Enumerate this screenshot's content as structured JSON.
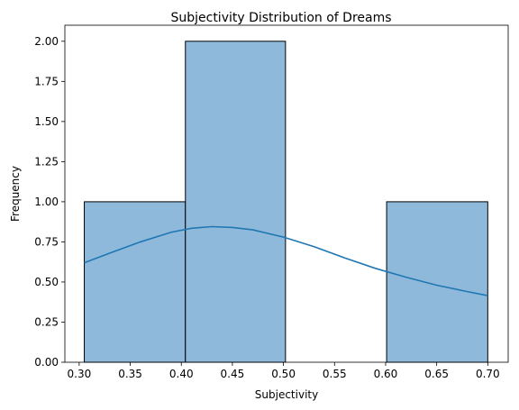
{
  "chart_data": {
    "type": "bar",
    "title": "Subjectivity Distribution of Dreams",
    "xlabel": "Subjectivity",
    "ylabel": "Frequency",
    "xlim": [
      0.286,
      0.72
    ],
    "ylim": [
      0,
      2.1
    ],
    "x_ticks": [
      0.3,
      0.35,
      0.4,
      0.45,
      0.5,
      0.55,
      0.6,
      0.65,
      0.7
    ],
    "x_tick_labels": [
      "0.30",
      "0.35",
      "0.40",
      "0.45",
      "0.50",
      "0.55",
      "0.60",
      "0.65",
      "0.70"
    ],
    "y_ticks": [
      0,
      0.25,
      0.5,
      0.75,
      1.0,
      1.25,
      1.5,
      1.75,
      2.0
    ],
    "y_tick_labels": [
      "0.00",
      "0.25",
      "0.50",
      "0.75",
      "1.00",
      "1.25",
      "1.50",
      "1.75",
      "2.00"
    ],
    "bins": [
      {
        "start": 0.305,
        "end": 0.404,
        "count": 1
      },
      {
        "start": 0.404,
        "end": 0.502,
        "count": 2
      },
      {
        "start": 0.502,
        "end": 0.601,
        "count": 0
      },
      {
        "start": 0.601,
        "end": 0.7,
        "count": 1
      }
    ],
    "kde": {
      "x": [
        0.305,
        0.33,
        0.36,
        0.39,
        0.41,
        0.43,
        0.45,
        0.47,
        0.5,
        0.53,
        0.56,
        0.59,
        0.62,
        0.65,
        0.68,
        0.7
      ],
      "y": [
        0.62,
        0.68,
        0.75,
        0.81,
        0.835,
        0.845,
        0.84,
        0.825,
        0.78,
        0.72,
        0.65,
        0.585,
        0.53,
        0.48,
        0.44,
        0.415
      ]
    },
    "grid": false,
    "legend": "none",
    "colors": {
      "bar_fill": "#8fb9da",
      "bar_edge": "#000000",
      "kde_line": "#1f77b4"
    }
  }
}
